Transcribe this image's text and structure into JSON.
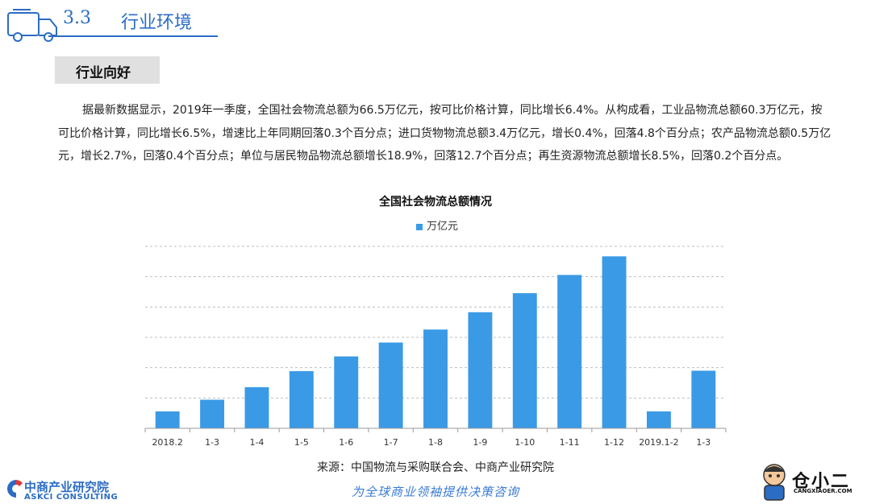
{
  "header": {
    "section_number": "3.3",
    "section_title": "行业环境"
  },
  "subheading": "行业向好",
  "paragraph": "据最新数据显示，2019年一季度，全国社会物流总额为66.5万亿元，按可比价格计算，同比增长6.4%。从构成看，工业品物流总额60.3万亿元，按可比价格计算，同比增长6.5%，增速比上年同期回落0.3个百分点；进口货物物流总额3.4万亿元，增长0.4%，回落4.8个百分点；农产品物流总额0.5万亿元，增长2.7%，回落0.4个百分点；单位与居民物品物流总额增长18.9%，回落12.7个百分点；再生资源物流总额增长8.5%，回落0.2个百分点。",
  "chart_data": {
    "type": "bar",
    "title": "全国社会物流总额情况",
    "series": [
      {
        "name": "万亿元",
        "color": "#3a9ae6",
        "values": [
          19.5,
          33.0,
          47.5,
          66.0,
          83.0,
          99.0,
          114.0,
          134.0,
          156.0,
          177.0,
          198.5,
          19.5,
          66.5
        ]
      }
    ],
    "categories": [
      "2018.2",
      "1-3",
      "1-4",
      "1-5",
      "1-6",
      "1-7",
      "1-8",
      "1-9",
      "1-10",
      "1-11",
      "1-12",
      "2019.1-2",
      "1-3"
    ],
    "ylim": [
      0,
      210
    ],
    "grid": true,
    "legend_position": "top"
  },
  "source_note": "来源：中国物流与采购联合会、中商产业研究院",
  "slogan": "为全球商业领袖提供决策咨询",
  "logo_left": {
    "name_cn": "中商产业研究院",
    "name_en": "ASKCI CONSULTING"
  },
  "logo_right": {
    "name_cn": "仓小二",
    "site": "CANGXIAOER.COM"
  }
}
